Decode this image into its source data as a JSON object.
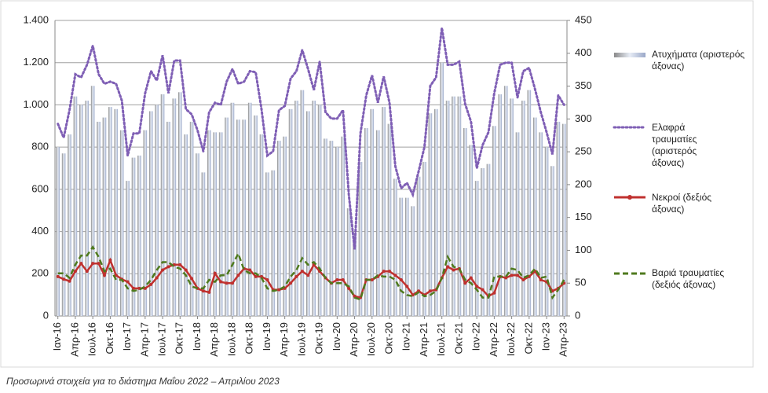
{
  "chart_data": {
    "type": "bar",
    "categories": [
      "Ιαν-16",
      null,
      null,
      "Απρ-16",
      null,
      null,
      "Ιουλ-16",
      null,
      null,
      "Οκτ-16",
      null,
      null,
      "Ιαν-17",
      null,
      null,
      "Απρ-17",
      null,
      null,
      "Ιουλ-17",
      null,
      null,
      "Οκτ-17",
      null,
      null,
      "Ιαν-18",
      null,
      null,
      "Απρ-18",
      null,
      null,
      "Ιουλ-18",
      null,
      null,
      "Οκτ-18",
      null,
      null,
      "Ιαν-19",
      null,
      null,
      "Απρ-19",
      null,
      null,
      "Ιουλ-19",
      null,
      null,
      "Οκτ-19",
      null,
      null,
      "Ιαν-20",
      null,
      null,
      "Απρ-20",
      null,
      null,
      "Ιουλ-20",
      null,
      null,
      "Οκτ-20",
      null,
      null,
      "Ιαν-21",
      null,
      null,
      "Απρ-21",
      null,
      null,
      "Ιουλ-21",
      null,
      null,
      "Οκτ-21",
      null,
      null,
      "Ιαν-22",
      null,
      null,
      "Απρ-22",
      null,
      null,
      "Ιουλ-22",
      null,
      null,
      "Οκτ-22",
      null,
      null,
      "Ιαν-23",
      null,
      null,
      "Απρ-23"
    ],
    "series": [
      {
        "name": "Ατυχήματα (αριστερός άξονας)",
        "type": "bar",
        "color": "#aab8d6",
        "values": [
          800,
          770,
          860,
          1040,
          1000,
          1020,
          1090,
          920,
          940,
          990,
          980,
          880,
          640,
          750,
          760,
          880,
          970,
          1000,
          1050,
          920,
          1030,
          1060,
          860,
          920,
          770,
          680,
          880,
          870,
          870,
          940,
          1010,
          930,
          930,
          1010,
          950,
          860,
          680,
          690,
          830,
          850,
          980,
          1020,
          1070,
          970,
          1020,
          1000,
          840,
          830,
          800,
          850,
          510,
          380,
          730,
          890,
          980,
          880,
          990,
          910,
          650,
          560,
          560,
          520,
          660,
          730,
          960,
          980,
          1200,
          1020,
          1040,
          1040,
          890,
          810,
          640,
          700,
          720,
          900,
          1050,
          1090,
          1030,
          870,
          1020,
          1070,
          940,
          870,
          800,
          710,
          920,
          910
        ]
      },
      {
        "name": "Ελαφρά τραυματίες (αριστερός άξονας)",
        "type": "line",
        "line_style": "dotted",
        "color": "#7f5fb5",
        "values": [
          910,
          845,
          975,
          1145,
          1130,
          1190,
          1280,
          1145,
          1100,
          1110,
          1100,
          1020,
          760,
          865,
          865,
          1055,
          1160,
          1115,
          1235,
          1055,
          1210,
          1210,
          980,
          955,
          880,
          780,
          965,
          1010,
          1000,
          1110,
          1170,
          1100,
          1110,
          1160,
          1155,
          980,
          760,
          780,
          975,
          995,
          1125,
          1160,
          1260,
          1170,
          1070,
          1205,
          965,
          935,
          935,
          975,
          575,
          315,
          865,
          1045,
          1140,
          1010,
          1135,
          1010,
          710,
          605,
          630,
          575,
          685,
          800,
          1090,
          1130,
          1365,
          1190,
          1190,
          1205,
          1005,
          920,
          700,
          810,
          870,
          1055,
          1190,
          1200,
          1200,
          1035,
          1160,
          1175,
          1075,
          965,
          870,
          765,
          1045,
          1000
        ]
      },
      {
        "name": "Νεκροί (δεξιός άξονας)",
        "type": "line",
        "line_style": "solid",
        "marker": "circle",
        "axis": "y2",
        "color": "#c0312f",
        "values": [
          60,
          56,
          53,
          68,
          80,
          68,
          80,
          80,
          62,
          85,
          62,
          56,
          52,
          42,
          42,
          42,
          48,
          58,
          70,
          75,
          78,
          78,
          70,
          57,
          42,
          38,
          36,
          65,
          52,
          50,
          50,
          62,
          72,
          70,
          60,
          60,
          55,
          40,
          40,
          42,
          50,
          60,
          68,
          62,
          78,
          68,
          58,
          50,
          55,
          55,
          42,
          30,
          28,
          55,
          55,
          60,
          68,
          68,
          62,
          55,
          45,
          32,
          38,
          32,
          38,
          40,
          58,
          75,
          70,
          72,
          50,
          58,
          45,
          40,
          30,
          35,
          60,
          58,
          62,
          62,
          55,
          60,
          68,
          55,
          52,
          38,
          42,
          50
        ]
      },
      {
        "name": "Βαριά τραυματίες (δεξιός άξονας)",
        "type": "line",
        "line_style": "dashed",
        "axis": "y2",
        "color": "#4f7a1e",
        "values": [
          65,
          65,
          58,
          78,
          92,
          92,
          105,
          90,
          68,
          72,
          55,
          55,
          42,
          38,
          40,
          45,
          55,
          70,
          82,
          82,
          75,
          72,
          62,
          45,
          42,
          42,
          55,
          52,
          62,
          62,
          78,
          95,
          70,
          65,
          65,
          58,
          42,
          38,
          40,
          45,
          60,
          70,
          88,
          78,
          82,
          72,
          58,
          50,
          50,
          50,
          45,
          28,
          25,
          55,
          55,
          62,
          60,
          60,
          55,
          38,
          32,
          30,
          36,
          30,
          32,
          38,
          58,
          90,
          75,
          72,
          55,
          50,
          40,
          28,
          28,
          60,
          60,
          60,
          72,
          70,
          58,
          62,
          72,
          58,
          60,
          28,
          40,
          55
        ]
      }
    ],
    "ylim": [
      0,
      1400
    ],
    "yticks": [
      0,
      200,
      400,
      600,
      800,
      {
        "value": 1000,
        "label": "1.000"
      },
      {
        "value": 1200,
        "label": "1.200"
      },
      {
        "value": 1400,
        "label": "1.400"
      }
    ],
    "y2lim": [
      0,
      450
    ],
    "y2ticks": [
      0,
      50,
      100,
      150,
      200,
      250,
      300,
      350,
      400,
      450
    ],
    "grid": true,
    "note": "Προσωρινά στοιχεία για το διάστημα Μαΐου 2022 – Απριλίου 2023"
  }
}
